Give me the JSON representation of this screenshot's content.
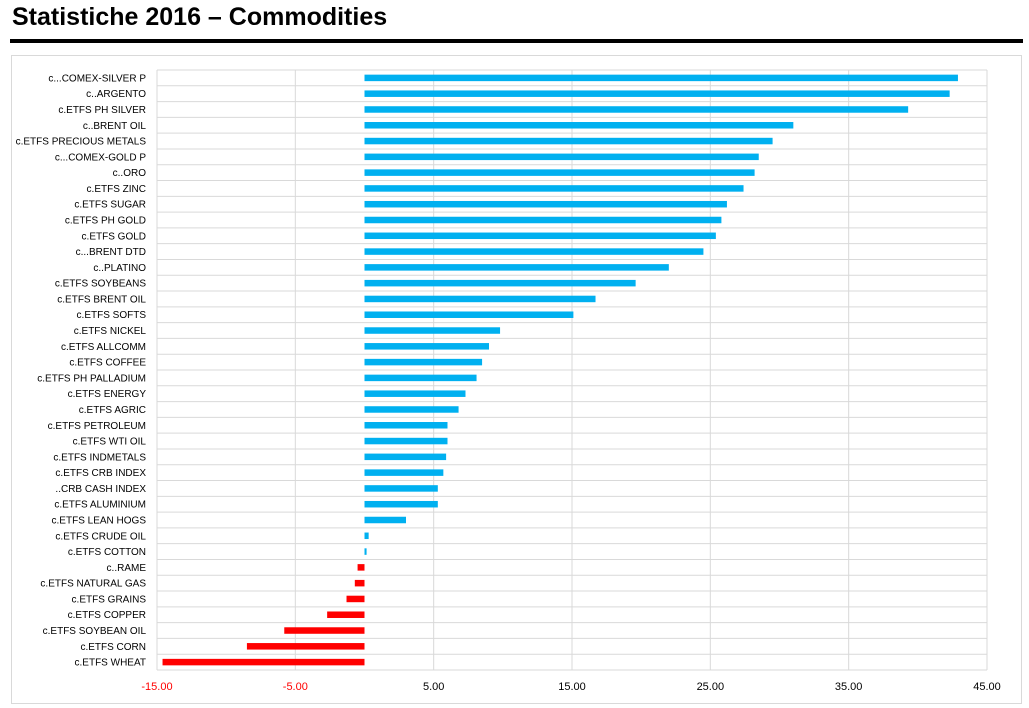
{
  "page": {
    "title": "Statistiche 2016 – Commodities"
  },
  "colors": {
    "positive": "#00b0f0",
    "negative": "#ff0000",
    "grid": "#d9d9d9",
    "negative_tick": "#ff0000",
    "positive_tick": "#000000"
  },
  "chart_data": {
    "type": "bar",
    "orientation": "horizontal",
    "title": "",
    "xlabel": "",
    "ylabel": "",
    "xlim": [
      -15,
      45
    ],
    "grid": true,
    "legend": "none",
    "tick_labels": [
      "-15.00",
      "-5.00",
      "5.00",
      "15.00",
      "25.00",
      "35.00",
      "45.00"
    ],
    "categories": [
      "c...COMEX-SILVER P",
      "c..ARGENTO",
      "c.ETFS PH SILVER",
      "c..BRENT OIL",
      "c.ETFS PRECIOUS METALS",
      "c...COMEX-GOLD P",
      "c..ORO",
      "c.ETFS ZINC",
      "c.ETFS SUGAR",
      "c.ETFS PH GOLD",
      "c.ETFS GOLD",
      "c...BRENT DTD",
      "c..PLATINO",
      "c.ETFS SOYBEANS",
      "c.ETFS BRENT OIL",
      "c.ETFS SOFTS",
      "c.ETFS NICKEL",
      "c.ETFS ALLCOMM",
      "c.ETFS COFFEE",
      "c.ETFS PH PALLADIUM",
      "c.ETFS ENERGY",
      "c.ETFS AGRIC",
      "c.ETFS PETROLEUM",
      "c.ETFS WTI OIL",
      "c.ETFS INDMETALS",
      "c.ETFS CRB INDEX",
      "..CRB CASH INDEX",
      "c.ETFS ALUMINIUM",
      "c.ETFS LEAN HOGS",
      "c.ETFS CRUDE OIL",
      "c.ETFS COTTON",
      "c..RAME",
      "c.ETFS NATURAL GAS",
      "c.ETFS GRAINS",
      "c.ETFS COPPER",
      "c.ETFS SOYBEAN OIL",
      "c.ETFS CORN",
      "c.ETFS WHEAT"
    ],
    "values": [
      42.9,
      42.3,
      39.3,
      31.0,
      29.5,
      28.5,
      28.2,
      27.4,
      26.2,
      25.8,
      25.4,
      24.5,
      22.0,
      19.6,
      16.7,
      15.1,
      9.8,
      9.0,
      8.5,
      8.1,
      7.3,
      6.8,
      6.0,
      6.0,
      5.9,
      5.7,
      5.3,
      5.3,
      3.0,
      0.3,
      0.15,
      -0.5,
      -0.7,
      -1.3,
      -2.7,
      -5.8,
      -8.5,
      -14.6
    ]
  }
}
